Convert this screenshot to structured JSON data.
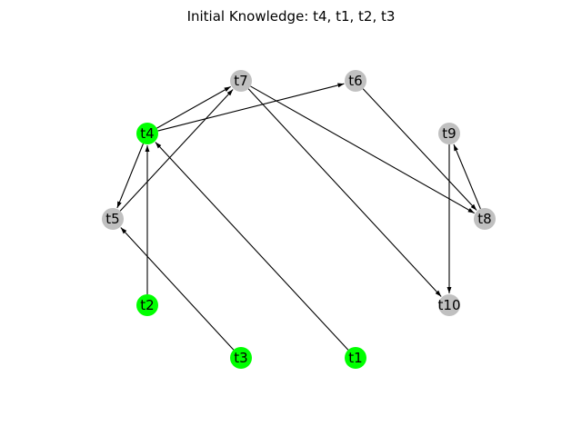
{
  "figure": {
    "title": "Initial Knowledge: t4, t1, t2, t3"
  },
  "colors": {
    "known": "#00ff00",
    "unknown": "#c0c0c0",
    "edge": "#000000"
  },
  "nodes": [
    {
      "id": "t7",
      "label": "t7",
      "status": "unknown"
    },
    {
      "id": "t6",
      "label": "t6",
      "status": "unknown"
    },
    {
      "id": "t4",
      "label": "t4",
      "status": "known"
    },
    {
      "id": "t9",
      "label": "t9",
      "status": "unknown"
    },
    {
      "id": "t5",
      "label": "t5",
      "status": "unknown"
    },
    {
      "id": "t8",
      "label": "t8",
      "status": "unknown"
    },
    {
      "id": "t2",
      "label": "t2",
      "status": "known"
    },
    {
      "id": "t10",
      "label": "t10",
      "status": "unknown"
    },
    {
      "id": "t3",
      "label": "t3",
      "status": "known"
    },
    {
      "id": "t1",
      "label": "t1",
      "status": "known"
    }
  ],
  "edges": [
    {
      "from": "t4",
      "to": "t7"
    },
    {
      "from": "t4",
      "to": "t6"
    },
    {
      "from": "t4",
      "to": "t5"
    },
    {
      "from": "t5",
      "to": "t7"
    },
    {
      "from": "t2",
      "to": "t4"
    },
    {
      "from": "t1",
      "to": "t4"
    },
    {
      "from": "t3",
      "to": "t5"
    },
    {
      "from": "t7",
      "to": "t8"
    },
    {
      "from": "t7",
      "to": "t10"
    },
    {
      "from": "t6",
      "to": "t8"
    },
    {
      "from": "t8",
      "to": "t9"
    },
    {
      "from": "t9",
      "to": "t10"
    }
  ]
}
